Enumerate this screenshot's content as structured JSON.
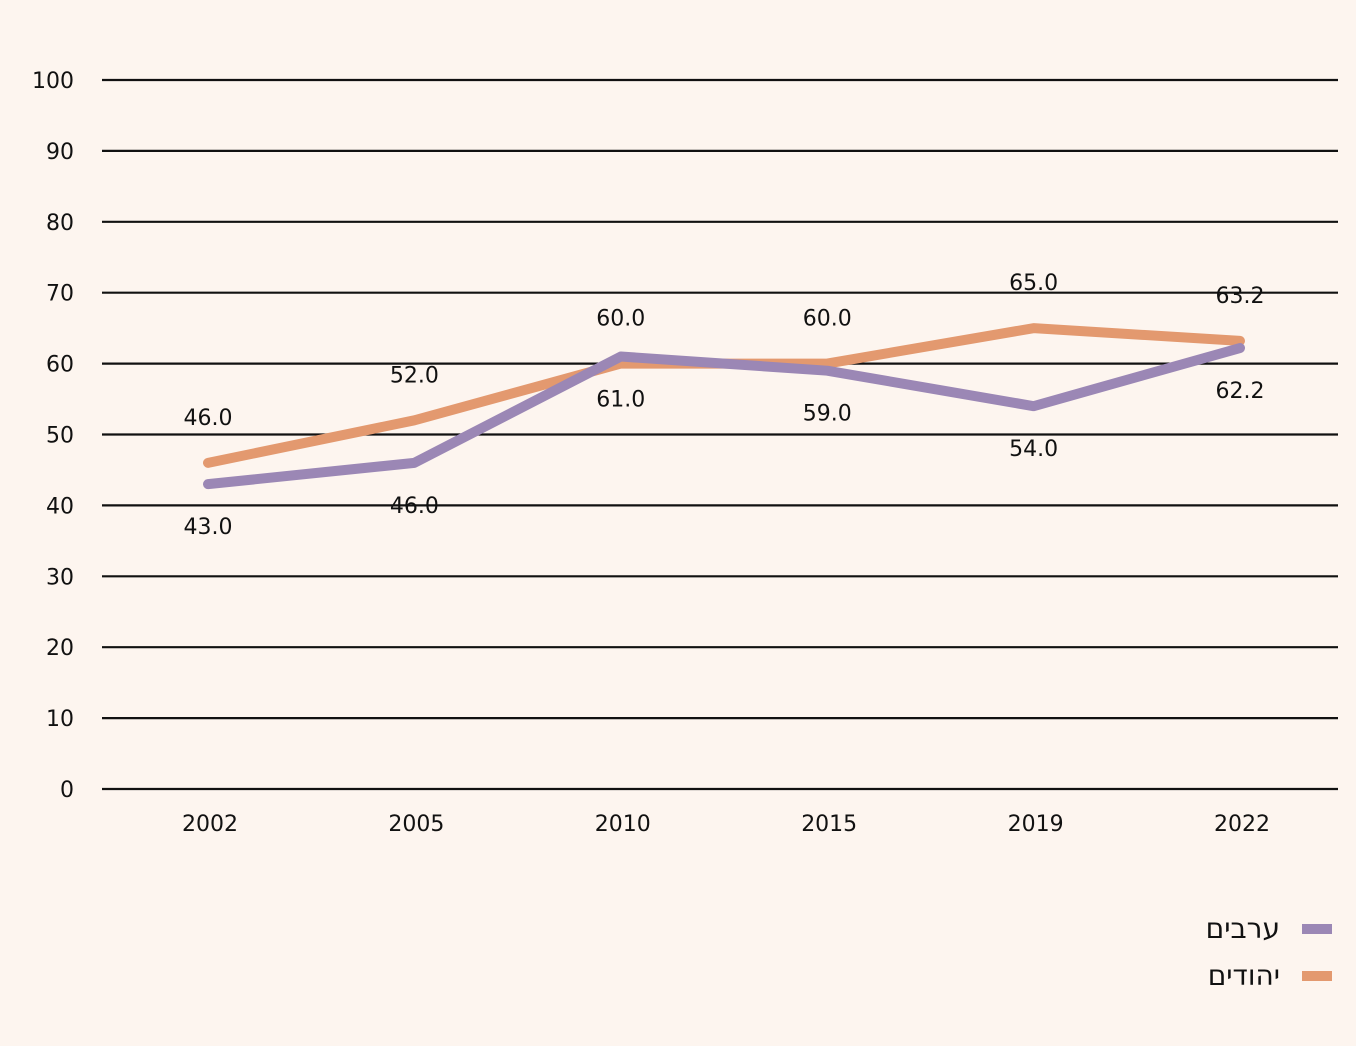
{
  "chart_data": {
    "type": "line",
    "x": [
      "2002",
      "2005",
      "2010",
      "2015",
      "2019",
      "2022"
    ],
    "series": [
      {
        "name": "יהודים",
        "color": "#e3996f",
        "values": [
          46.0,
          52.0,
          60.0,
          60.0,
          65.0,
          63.2
        ],
        "labels": [
          "46.0",
          "52.0",
          "60.0",
          "60.0",
          "65.0",
          "63.2"
        ],
        "label_position": "above"
      },
      {
        "name": "ערבים",
        "color": "#9b87b5",
        "values": [
          43.0,
          46.0,
          61.0,
          59.0,
          54.0,
          62.2
        ],
        "labels": [
          "43.0",
          "46.0",
          "61.0",
          "59.0",
          "54.0",
          "62.2"
        ],
        "label_position": "below"
      }
    ],
    "yticks": [
      "0",
      "10",
      "20",
      "30",
      "40",
      "50",
      "60",
      "70",
      "80",
      "90",
      "100"
    ],
    "ylim": [
      0,
      100
    ],
    "grid": true,
    "legend_position": "bottom-right"
  },
  "legend": {
    "items": [
      {
        "label": "ערבים",
        "color": "#9b87b5"
      },
      {
        "label": "יהודים",
        "color": "#e3996f"
      }
    ]
  }
}
